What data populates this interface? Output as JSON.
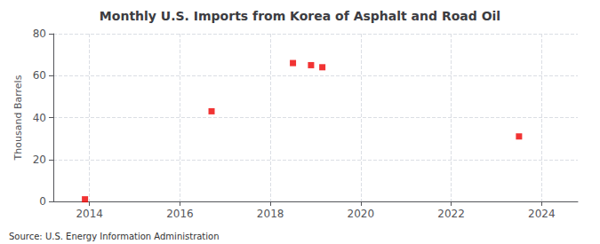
{
  "chart_data": {
    "type": "scatter",
    "title": "Monthly U.S. Imports from Korea of Asphalt and Road Oil",
    "ylabel": "Thousand Barrels",
    "annotations": [
      "Source: U.S. Energy Information Administration"
    ],
    "x": [
      2013.9,
      2016.7,
      2018.5,
      2018.9,
      2019.15,
      2023.5
    ],
    "values": [
      1,
      43,
      66,
      65,
      64,
      31
    ],
    "color": "#ee0000",
    "marker": "square",
    "xlim": [
      2013.2,
      2024.8
    ],
    "xticks": [
      2014,
      2016,
      2018,
      2020,
      2022,
      2024
    ],
    "ylim": [
      0,
      80
    ],
    "yticks": [
      0,
      20,
      40,
      60,
      80
    ],
    "grid": true
  }
}
